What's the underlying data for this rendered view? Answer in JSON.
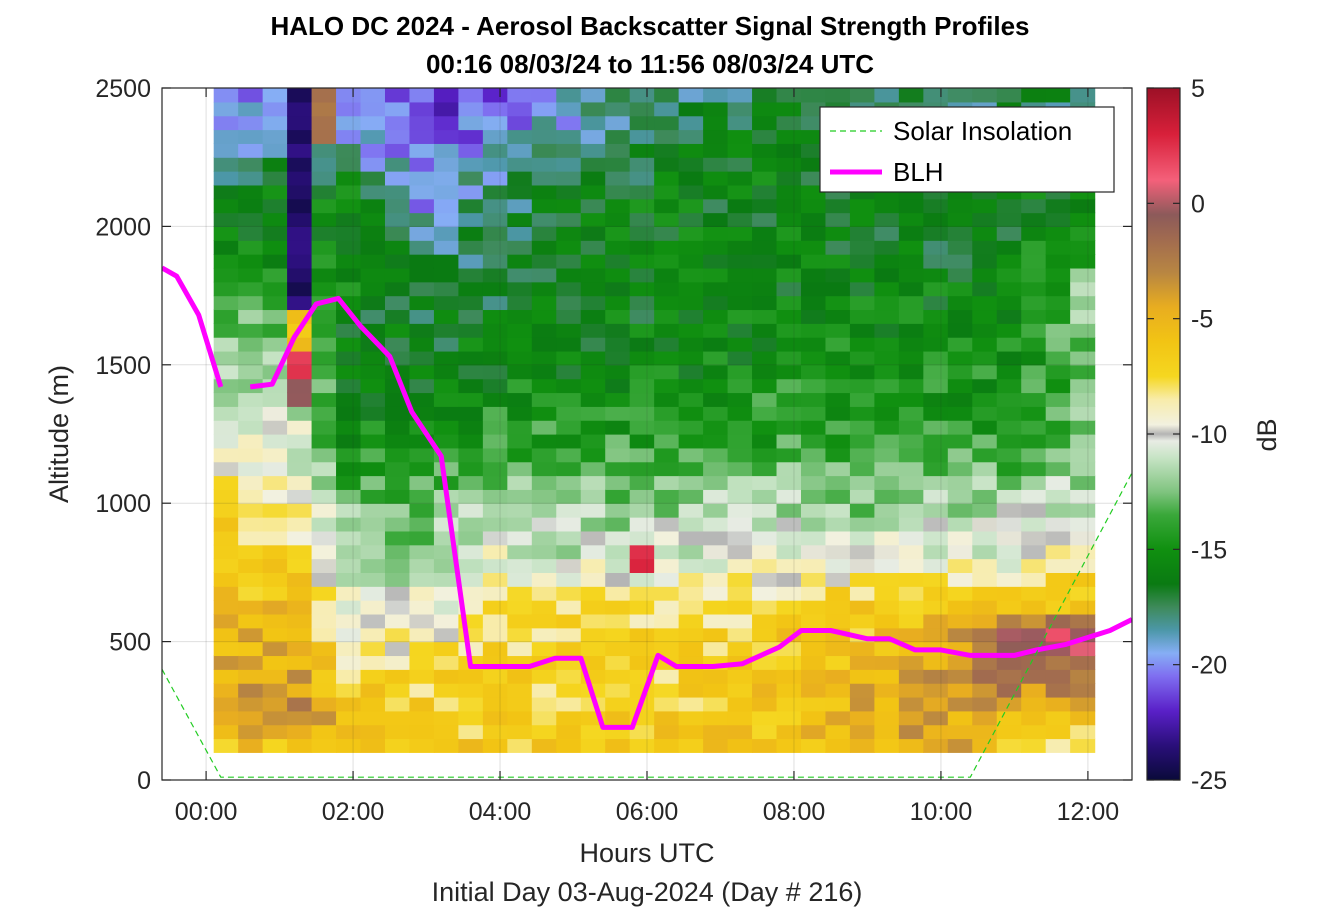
{
  "figure": {
    "title_line1": "HALO DC 2024 - Aerosol Backscatter Signal Strength Profiles",
    "title_line2": "00:16 08/03/24 to 11:56 08/03/24  UTC",
    "xlabel": "Hours UTC",
    "subtitle": "Initial Day 03-Aug-2024 (Day # 216)",
    "ylabel": "Altitude (m)",
    "colorbar_label": "dB"
  },
  "legend": {
    "placement": "top-right",
    "items": [
      {
        "label": "Solar Insolation",
        "color": "#22cc22",
        "style": "dashed"
      },
      {
        "label": "BLH",
        "color": "#ff00ff",
        "style": "solid"
      }
    ]
  },
  "chart_data": {
    "type": "heatmap",
    "x_unit": "hours UTC",
    "xlim": [
      -0.6,
      12.6
    ],
    "ylim": [
      0,
      2500
    ],
    "x_ticks": [
      0,
      2,
      4,
      6,
      8,
      10,
      12
    ],
    "x_tick_labels": [
      "00:00",
      "02:00",
      "04:00",
      "06:00",
      "08:00",
      "10:00",
      "12:00"
    ],
    "y_ticks": [
      0,
      500,
      1000,
      1500,
      2000,
      2500
    ],
    "y_tick_labels": [
      "0",
      "500",
      "1000",
      "1500",
      "2000",
      "2500"
    ],
    "grid": true,
    "heatmap": {
      "x_start": 0.27,
      "x_end": 11.93,
      "y_start": 100,
      "y_end": 2500,
      "cell_width_hours": 0.333,
      "cell_height_m": 50,
      "value_unit": "dB",
      "profile_hours": [
        0.27,
        1.27,
        1.93,
        2.93,
        3.93,
        4.93,
        5.6,
        5.93,
        6.93,
        7.93,
        8.93,
        9.93,
        10.93,
        11.93
      ],
      "profiles": [
        {
          "hour": 0.27,
          "max_alt": 2500,
          "pts": [
            [
              100,
              -6
            ],
            [
              200,
              -3
            ],
            [
              400,
              -5
            ],
            [
              700,
              -6
            ],
            [
              1000,
              -8
            ],
            [
              1100,
              -9
            ],
            [
              1200,
              -10
            ],
            [
              1400,
              -12
            ],
            [
              1600,
              -13
            ],
            [
              1800,
              -15
            ],
            [
              2000,
              -16
            ],
            [
              2200,
              -18
            ],
            [
              2300,
              -19.5
            ],
            [
              2500,
              -20
            ]
          ]
        },
        {
          "hour": 1.27,
          "max_alt": 2500,
          "pts": [
            [
              100,
              -6
            ],
            [
              200,
              -3
            ],
            [
              500,
              -5
            ],
            [
              700,
              -7
            ],
            [
              900,
              -9
            ],
            [
              1100,
              -10
            ],
            [
              1300,
              -11
            ],
            [
              1500,
              -12
            ],
            [
              1700,
              -13
            ],
            [
              1900,
              -15
            ],
            [
              2100,
              -16
            ],
            [
              2300,
              -18
            ],
            [
              2500,
              -19
            ]
          ]
        },
        {
          "hour": 1.93,
          "max_alt": 2500,
          "pts": [
            [
              100,
              -6
            ],
            [
              300,
              -7
            ],
            [
              500,
              -9
            ],
            [
              700,
              -11
            ],
            [
              1000,
              -13
            ],
            [
              1200,
              -15
            ],
            [
              1500,
              -16
            ],
            [
              1800,
              -15.5
            ],
            [
              2100,
              -16
            ],
            [
              2300,
              -19
            ],
            [
              2500,
              -20
            ]
          ]
        },
        {
          "hour": 2.93,
          "max_alt": 2500,
          "pts": [
            [
              100,
              -6
            ],
            [
              300,
              -7
            ],
            [
              500,
              -9
            ],
            [
              700,
              -11
            ],
            [
              900,
              -12.5
            ],
            [
              1100,
              -14
            ],
            [
              1400,
              -16
            ],
            [
              1700,
              -17
            ],
            [
              1900,
              -18
            ],
            [
              2100,
              -20
            ],
            [
              2300,
              -21
            ],
            [
              2500,
              -22
            ]
          ]
        },
        {
          "hour": 3.93,
          "max_alt": 2500,
          "pts": [
            [
              100,
              -7
            ],
            [
              300,
              -7
            ],
            [
              600,
              -8
            ],
            [
              800,
              -10
            ],
            [
              1000,
              -12
            ],
            [
              1200,
              -14
            ],
            [
              1500,
              -16
            ],
            [
              1800,
              -17
            ],
            [
              2100,
              -18
            ],
            [
              2300,
              -20
            ],
            [
              2500,
              -21
            ]
          ]
        },
        {
          "hour": 4.93,
          "max_alt": 2500,
          "pts": [
            [
              100,
              -7
            ],
            [
              300,
              -7
            ],
            [
              600,
              -8
            ],
            [
              800,
              -11
            ],
            [
              1000,
              -12.5
            ],
            [
              1200,
              -14
            ],
            [
              1500,
              -16
            ],
            [
              1800,
              -16
            ],
            [
              2100,
              -16.5
            ],
            [
              2300,
              -19
            ],
            [
              2500,
              -20
            ]
          ]
        },
        {
          "hour": 5.6,
          "max_alt": 2500,
          "pts": [
            [
              100,
              -7
            ],
            [
              300,
              -7
            ],
            [
              600,
              -7.5
            ],
            [
              800,
              -11
            ],
            [
              1000,
              -12.5
            ],
            [
              1200,
              -14
            ],
            [
              1500,
              -16
            ],
            [
              1800,
              -16
            ],
            [
              2100,
              -16
            ],
            [
              2300,
              -18
            ],
            [
              2500,
              -19
            ]
          ]
        },
        {
          "hour": 5.93,
          "max_alt": 2500,
          "pts": [
            [
              100,
              -7
            ],
            [
              300,
              -7
            ],
            [
              600,
              -8
            ],
            [
              800,
              -11
            ],
            [
              1000,
              -12
            ],
            [
              1200,
              -14
            ],
            [
              1500,
              -16
            ],
            [
              1800,
              -16
            ],
            [
              2100,
              -16
            ],
            [
              2300,
              -18
            ],
            [
              2500,
              -19
            ]
          ]
        },
        {
          "hour": 6.93,
          "max_alt": 2500,
          "pts": [
            [
              100,
              -6
            ],
            [
              300,
              -7
            ],
            [
              600,
              -8
            ],
            [
              800,
              -10
            ],
            [
              1000,
              -12
            ],
            [
              1200,
              -14
            ],
            [
              1500,
              -15.5
            ],
            [
              1800,
              -16
            ],
            [
              2100,
              -16
            ],
            [
              2300,
              -16.5
            ],
            [
              2500,
              -18
            ]
          ]
        },
        {
          "hour": 7.93,
          "max_alt": 2500,
          "pts": [
            [
              100,
              -6
            ],
            [
              300,
              -6
            ],
            [
              600,
              -7
            ],
            [
              800,
              -10
            ],
            [
              1000,
              -12
            ],
            [
              1200,
              -14
            ],
            [
              1500,
              -15
            ],
            [
              1800,
              -16
            ],
            [
              2100,
              -16
            ],
            [
              2300,
              -16
            ],
            [
              2500,
              -17
            ]
          ]
        },
        {
          "hour": 8.93,
          "max_alt": 2500,
          "pts": [
            [
              100,
              -5
            ],
            [
              300,
              -5
            ],
            [
              600,
              -7
            ],
            [
              800,
              -10
            ],
            [
              1000,
              -12.5
            ],
            [
              1200,
              -14
            ],
            [
              1500,
              -15
            ],
            [
              1800,
              -16
            ],
            [
              2100,
              -16.5
            ],
            [
              2300,
              -17
            ],
            [
              2500,
              -18
            ]
          ]
        },
        {
          "hour": 9.93,
          "max_alt": 2500,
          "pts": [
            [
              100,
              -4
            ],
            [
              300,
              -4
            ],
            [
              600,
              -6
            ],
            [
              800,
              -10
            ],
            [
              1000,
              -12
            ],
            [
              1200,
              -14
            ],
            [
              1500,
              -15
            ],
            [
              1800,
              -16
            ],
            [
              2100,
              -17
            ],
            [
              2300,
              -18
            ],
            [
              2500,
              -18
            ]
          ]
        },
        {
          "hour": 10.93,
          "max_alt": 2500,
          "pts": [
            [
              100,
              -7
            ],
            [
              200,
              -5
            ],
            [
              300,
              -3
            ],
            [
              500,
              0
            ],
            [
              600,
              -7
            ],
            [
              800,
              -10
            ],
            [
              1000,
              -12
            ],
            [
              1200,
              -14
            ],
            [
              1500,
              -15
            ],
            [
              1800,
              -16
            ],
            [
              2100,
              -16
            ],
            [
              2300,
              -17
            ],
            [
              2500,
              -18
            ]
          ]
        },
        {
          "hour": 11.93,
          "max_alt": 2500,
          "pts": [
            [
              100,
              -8
            ],
            [
              200,
              -6
            ],
            [
              300,
              -3
            ],
            [
              500,
              1
            ],
            [
              600,
              -6
            ],
            [
              800,
              -9
            ],
            [
              1000,
              -11
            ],
            [
              1200,
              -13
            ],
            [
              1400,
              -13
            ],
            [
              1600,
              -12
            ],
            [
              1800,
              -13
            ],
            [
              2000,
              -15
            ],
            [
              2200,
              -16
            ],
            [
              2400,
              -17
            ],
            [
              2500,
              -18
            ]
          ]
        }
      ],
      "special_columns": [
        {
          "hour": 1.27,
          "from_alt": 1700,
          "to_alt": 2500,
          "value": -24
        },
        {
          "hour": 1.27,
          "from_alt": 1550,
          "to_alt": 1700,
          "value": -6
        },
        {
          "hour": 1.27,
          "from_alt": 1450,
          "to_alt": 1550,
          "value": 2
        },
        {
          "hour": 1.27,
          "from_alt": 1350,
          "to_alt": 1450,
          "value": 0
        },
        {
          "hour": 1.6,
          "from_alt": 2300,
          "to_alt": 2500,
          "value": -2
        },
        {
          "hour": 5.93,
          "from_alt": 750,
          "to_alt": 850,
          "value": 3
        }
      ]
    },
    "series": [
      {
        "name": "BLH",
        "segments": [
          [
            [
              -0.6,
              1850
            ],
            [
              -0.4,
              1820
            ],
            [
              -0.1,
              1680
            ],
            [
              0.2,
              1420
            ]
          ],
          [
            [
              0.6,
              1420
            ],
            [
              0.9,
              1430
            ],
            [
              1.2,
              1600
            ],
            [
              1.5,
              1720
            ],
            [
              1.8,
              1740
            ],
            [
              2.1,
              1640
            ],
            [
              2.5,
              1530
            ],
            [
              2.8,
              1330
            ],
            [
              3.2,
              1170
            ],
            [
              3.6,
              410
            ],
            [
              4.0,
              410
            ],
            [
              4.4,
              410
            ],
            [
              4.75,
              440
            ],
            [
              5.1,
              440
            ],
            [
              5.4,
              190
            ],
            [
              5.8,
              190
            ],
            [
              6.15,
              450
            ],
            [
              6.4,
              410
            ],
            [
              6.9,
              410
            ],
            [
              7.3,
              420
            ],
            [
              7.8,
              480
            ],
            [
              8.1,
              540
            ],
            [
              8.5,
              540
            ],
            [
              9.0,
              510
            ],
            [
              9.3,
              510
            ],
            [
              9.65,
              470
            ],
            [
              10.0,
              470
            ],
            [
              10.4,
              450
            ],
            [
              11.0,
              450
            ],
            [
              11.3,
              470
            ],
            [
              11.7,
              490
            ],
            [
              12.3,
              540
            ],
            [
              12.6,
              580
            ]
          ]
        ]
      },
      {
        "name": "Solar Insolation",
        "segments": [
          [
            [
              -0.6,
              400
            ],
            [
              0.2,
              10
            ],
            [
              10.4,
              10
            ],
            [
              12.6,
              1110
            ]
          ]
        ]
      }
    ],
    "colorbar": {
      "vmin": -25,
      "vmax": 5,
      "ticks": [
        5,
        0,
        -5,
        -10,
        -15,
        -20,
        -25
      ],
      "tick_labels": [
        "5",
        "0",
        "-5",
        "-10",
        "-15",
        "-20",
        "-25"
      ],
      "colormap": [
        [
          -25,
          "#0a0a3a"
        ],
        [
          -23.5,
          "#2a0f7a"
        ],
        [
          -22,
          "#5a20c8"
        ],
        [
          -20.5,
          "#7f6ef0"
        ],
        [
          -19.5,
          "#86aef5"
        ],
        [
          -18.5,
          "#4c97a8"
        ],
        [
          -17.5,
          "#3e8a5a"
        ],
        [
          -16.5,
          "#0a7a12"
        ],
        [
          -15,
          "#109010"
        ],
        [
          -13.5,
          "#3aa83a"
        ],
        [
          -12.5,
          "#80c480"
        ],
        [
          -11,
          "#c8e4c6"
        ],
        [
          -10.3,
          "#e8ece4"
        ],
        [
          -10,
          "#b4b4b4"
        ],
        [
          -9.6,
          "#f2f1e0"
        ],
        [
          -8.5,
          "#f8ecaa"
        ],
        [
          -7.5,
          "#f5d720"
        ],
        [
          -6,
          "#f2c414"
        ],
        [
          -4.5,
          "#e8ad20"
        ],
        [
          -3,
          "#b88642"
        ],
        [
          -1.5,
          "#a06a50"
        ],
        [
          -0.5,
          "#8c5a5a"
        ],
        [
          1,
          "#f4607a"
        ],
        [
          3,
          "#d8203a"
        ],
        [
          5,
          "#9c1026"
        ]
      ]
    }
  }
}
